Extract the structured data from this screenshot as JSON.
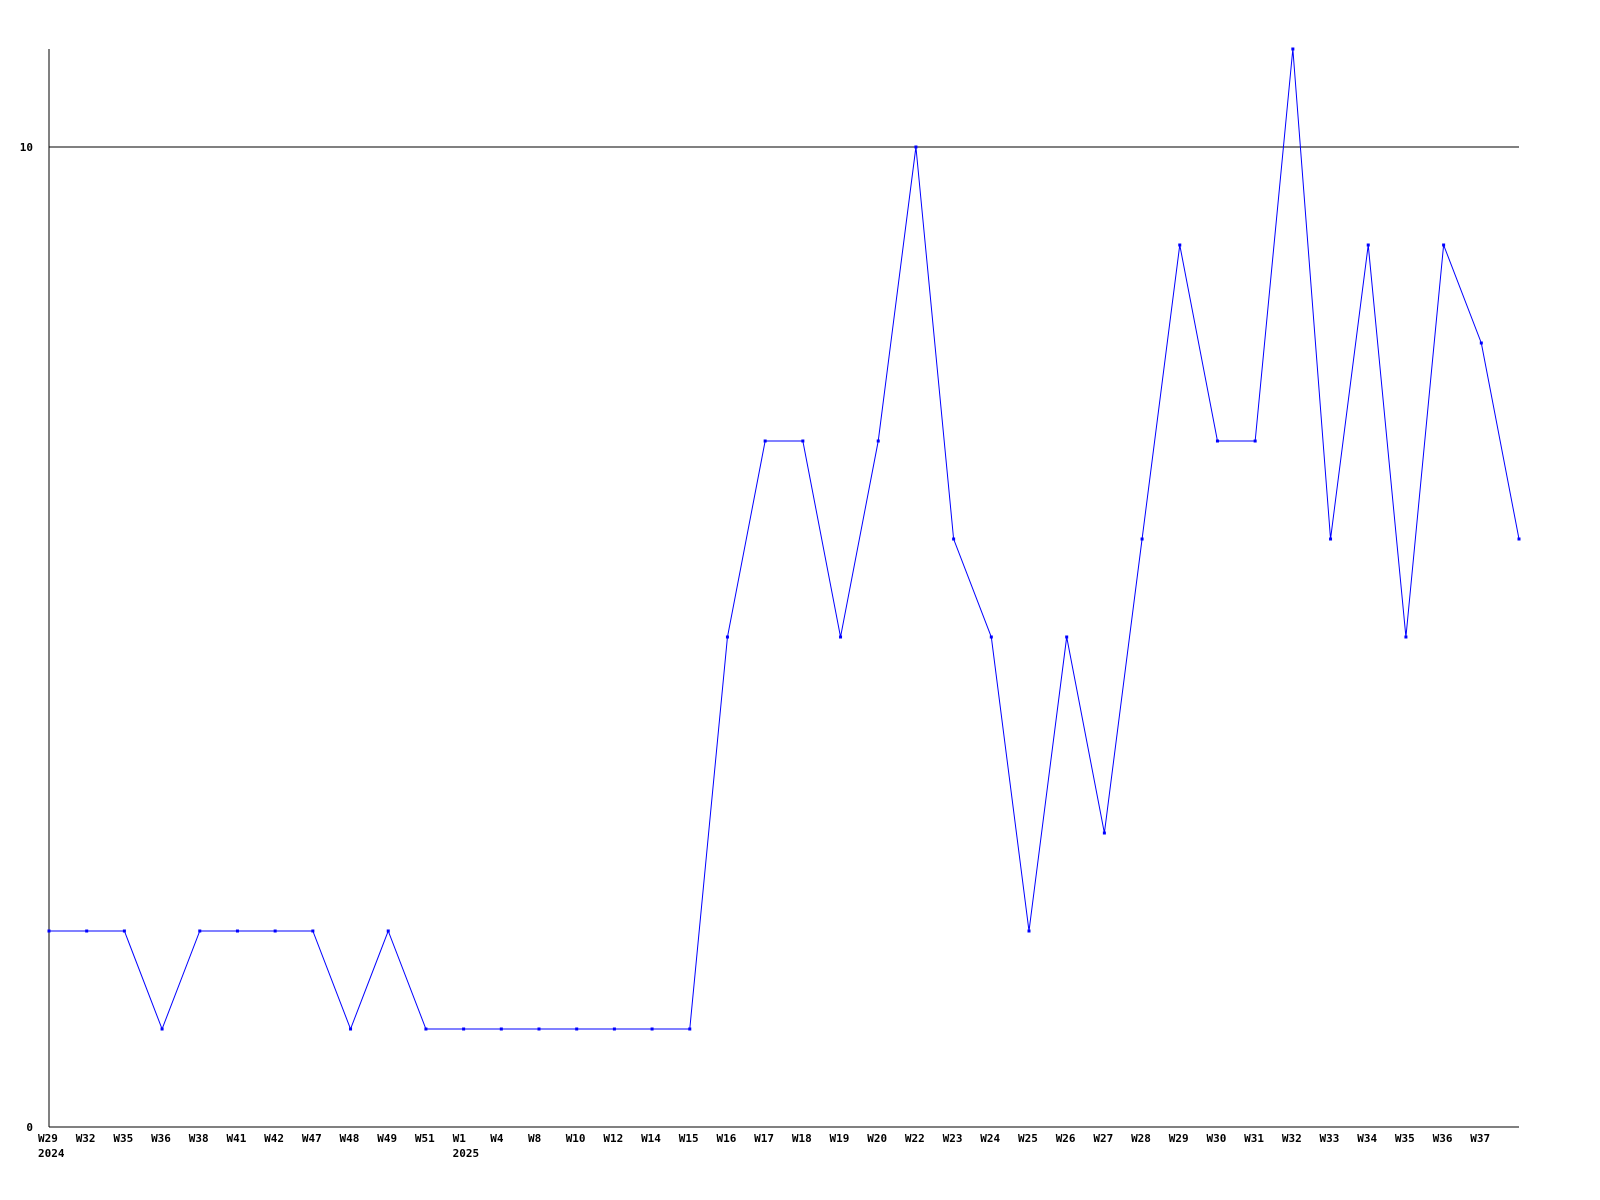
{
  "chart_data": {
    "type": "line",
    "title": "",
    "xlabel": "",
    "ylabel": "",
    "ylim": [
      0,
      11
    ],
    "y_ticks": [
      0,
      10
    ],
    "y_tick_labels": [
      "0",
      "10"
    ],
    "grid": "horizontal line at 10",
    "legend": "none",
    "categories": [
      "W29",
      "W32",
      "W35",
      "W36",
      "W38",
      "W41",
      "W42",
      "W47",
      "W48",
      "W49",
      "W51",
      "W1",
      "W4",
      "W8",
      "W10",
      "W12",
      "W14",
      "W15",
      "W16",
      "W17",
      "W18",
      "W19",
      "W20",
      "W22",
      "W23",
      "W24",
      "W25",
      "W26",
      "W27",
      "W28",
      "W29",
      "W30",
      "W31",
      "W32",
      "W33",
      "W34",
      "W35",
      "W36",
      "W37",
      ""
    ],
    "year_labels": [
      {
        "index": 0,
        "label": "2024"
      },
      {
        "index": 11,
        "label": "2025"
      }
    ],
    "series": [
      {
        "color": "#0000ff",
        "values": [
          2,
          2,
          2,
          1,
          2,
          2,
          2,
          2,
          1,
          2,
          1,
          1,
          1,
          1,
          1,
          1,
          1,
          1,
          5,
          7,
          7,
          5,
          7,
          10,
          6,
          5,
          2,
          5,
          3,
          6,
          9,
          7,
          7,
          11,
          6,
          9,
          5,
          9,
          8,
          6
        ]
      }
    ]
  }
}
